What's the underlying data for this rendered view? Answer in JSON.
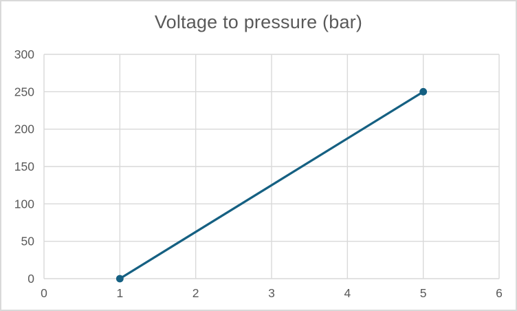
{
  "frame": {
    "background": "#FFFFFF",
    "border_color": "#D9D9D9"
  },
  "chart_data": {
    "type": "line",
    "title": "Voltage to pressure (bar)",
    "title_color": "#595959",
    "series": [
      {
        "name": "Voltage to pressure (bar)",
        "x": [
          1,
          5
        ],
        "y": [
          0,
          250
        ],
        "color": "#156082",
        "marker": "circle",
        "line_width": 3.25,
        "marker_radius": 5.4
      }
    ],
    "xlim": [
      0,
      6
    ],
    "ylim": [
      0,
      300
    ],
    "x_ticks": [
      0,
      1,
      2,
      3,
      4,
      5,
      6
    ],
    "y_ticks": [
      0,
      50,
      100,
      150,
      200,
      250,
      300
    ],
    "grid": true,
    "gridline_color": "#D9D9D9",
    "tick_label_color": "#595959",
    "xlabel": "",
    "ylabel": "",
    "legend_position": "none"
  }
}
